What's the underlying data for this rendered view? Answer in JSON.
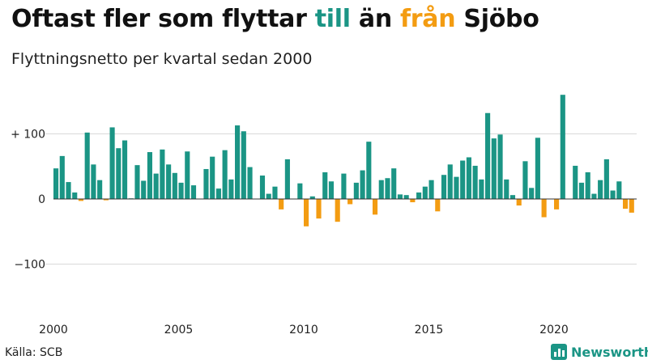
{
  "title": {
    "part1": "Oftast fler som flyttar ",
    "till": "till",
    "part2": " än ",
    "fran": "från",
    "part3": " Sjöbo"
  },
  "subtitle": "Flyttningsnetto per kvartal sedan 2000",
  "source": "Källa: SCB",
  "brand": "Newsworthy",
  "colors": {
    "positive": "#1b9585",
    "negative": "#f39c12",
    "grid": "#d9d9d9"
  },
  "chart_data": {
    "type": "bar",
    "y_ticks": [
      {
        "value": 100,
        "label": "+ 100"
      },
      {
        "value": 0,
        "label": "0"
      },
      {
        "value": -100,
        "label": "−100"
      }
    ],
    "x_ticks": [
      {
        "value": 2000,
        "label": "2000"
      },
      {
        "value": 2005,
        "label": "2005"
      },
      {
        "value": 2010,
        "label": "2010"
      },
      {
        "value": 2015,
        "label": "2015"
      },
      {
        "value": 2020,
        "label": "2020"
      }
    ],
    "ylim": [
      -175,
      170
    ],
    "start_year": 2000,
    "values": [
      47,
      66,
      26,
      10,
      -3,
      102,
      53,
      29,
      -2,
      110,
      78,
      90,
      1,
      52,
      28,
      72,
      39,
      76,
      53,
      40,
      25,
      73,
      21,
      0,
      46,
      65,
      16,
      75,
      30,
      113,
      104,
      49,
      0,
      36,
      8,
      19,
      -16,
      61,
      0,
      24,
      -42,
      4,
      -30,
      41,
      27,
      -35,
      39,
      -8,
      25,
      44,
      88,
      -24,
      29,
      32,
      47,
      7,
      6,
      -5,
      10,
      19,
      29,
      -19,
      37,
      53,
      34,
      59,
      64,
      51,
      30,
      132,
      93,
      99,
      30,
      6,
      -10,
      58,
      17,
      94,
      -28,
      0,
      -16,
      160,
      0,
      51,
      25,
      41,
      8,
      29,
      61,
      13,
      27,
      -15,
      -21
    ]
  }
}
